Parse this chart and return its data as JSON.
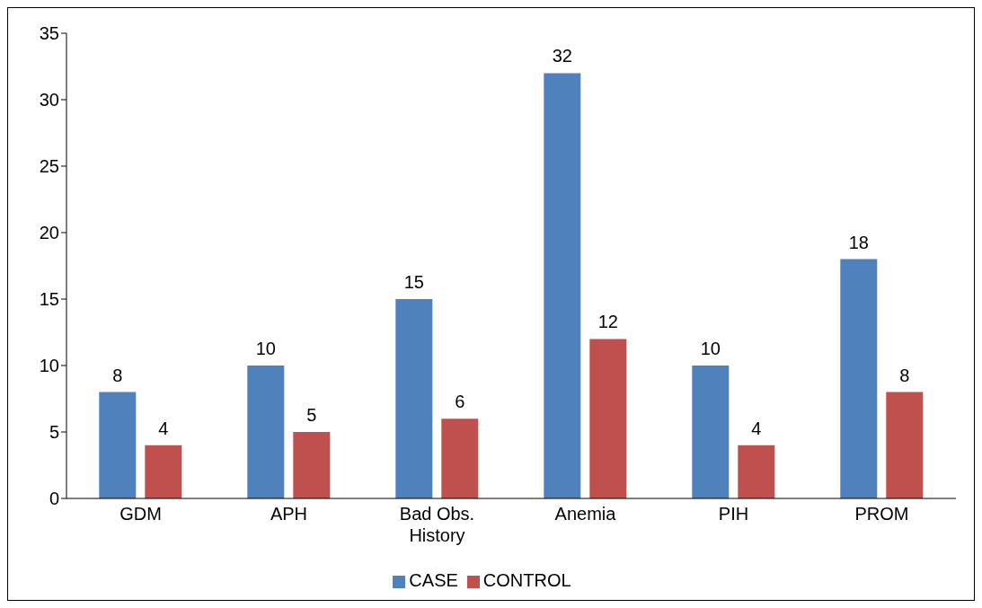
{
  "chart_data": {
    "type": "bar",
    "categories": [
      "GDM",
      "APH",
      "Bad Obs. History",
      "Anemia",
      "PIH",
      "PROM"
    ],
    "series": [
      {
        "name": "CASE",
        "color": "#4f81bd",
        "values": [
          8,
          10,
          15,
          32,
          10,
          18
        ]
      },
      {
        "name": "CONTROL",
        "color": "#c0504d",
        "values": [
          4,
          5,
          6,
          12,
          4,
          8
        ]
      }
    ],
    "ylim": [
      0,
      35
    ],
    "yticks": [
      0,
      5,
      10,
      15,
      20,
      25,
      30,
      35
    ],
    "data_labels": true,
    "legend": "bottom"
  }
}
